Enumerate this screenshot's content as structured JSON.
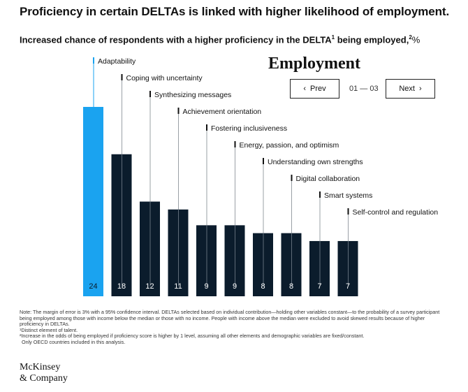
{
  "header": {
    "title": "Proficiency in certain DELTAs is linked with higher likelihood of employment.",
    "subtitle_main": "Increased chance of respondents with a higher proficiency in the DELTA",
    "subtitle_sup1": "1",
    "subtitle_mid": " being employed,",
    "subtitle_sup2": "2",
    "subtitle_unit": "%"
  },
  "panel": {
    "title": "Employment",
    "prev_label": "Prev",
    "next_label": "Next",
    "pager": "01 — 03"
  },
  "chart_data": {
    "type": "bar",
    "categories": [
      "Adaptability",
      "Coping with uncertainty",
      "Synthesizing messages",
      "Achievement orientation",
      "Fostering inclusiveness",
      "Energy, passion, and optimism",
      "Understanding own strengths",
      "Digital collaboration",
      "Smart systems",
      "Self-control and regulation"
    ],
    "values": [
      24,
      18,
      12,
      11,
      9,
      9,
      8,
      8,
      7,
      7
    ],
    "ylim": [
      0,
      24
    ],
    "highlight_index": 0,
    "highlight_color": "#1aa3f0",
    "bar_color": "#0b1c2c"
  },
  "notes": {
    "note": "Note: The margin of error is 3% with a 95% confidence interval. DELTAs selected based on individual contribution—holding other variables constant—to the probability of a survey participant being employed among those with income below the median or those with no income. People with income above the median were excluded to avoid skewed results because of higher proficiency in DELTAs.",
    "footnote1": "¹Distinct element of talent.",
    "footnote2": "²Increase in the odds of being employed if proficiency score is higher by 1 level, assuming all other elements and demographic variables are fixed/constant.",
    "footnote3": "Only OECD countries included in this analysis."
  },
  "brand": {
    "line1": "McKinsey",
    "line2": "& Company"
  }
}
